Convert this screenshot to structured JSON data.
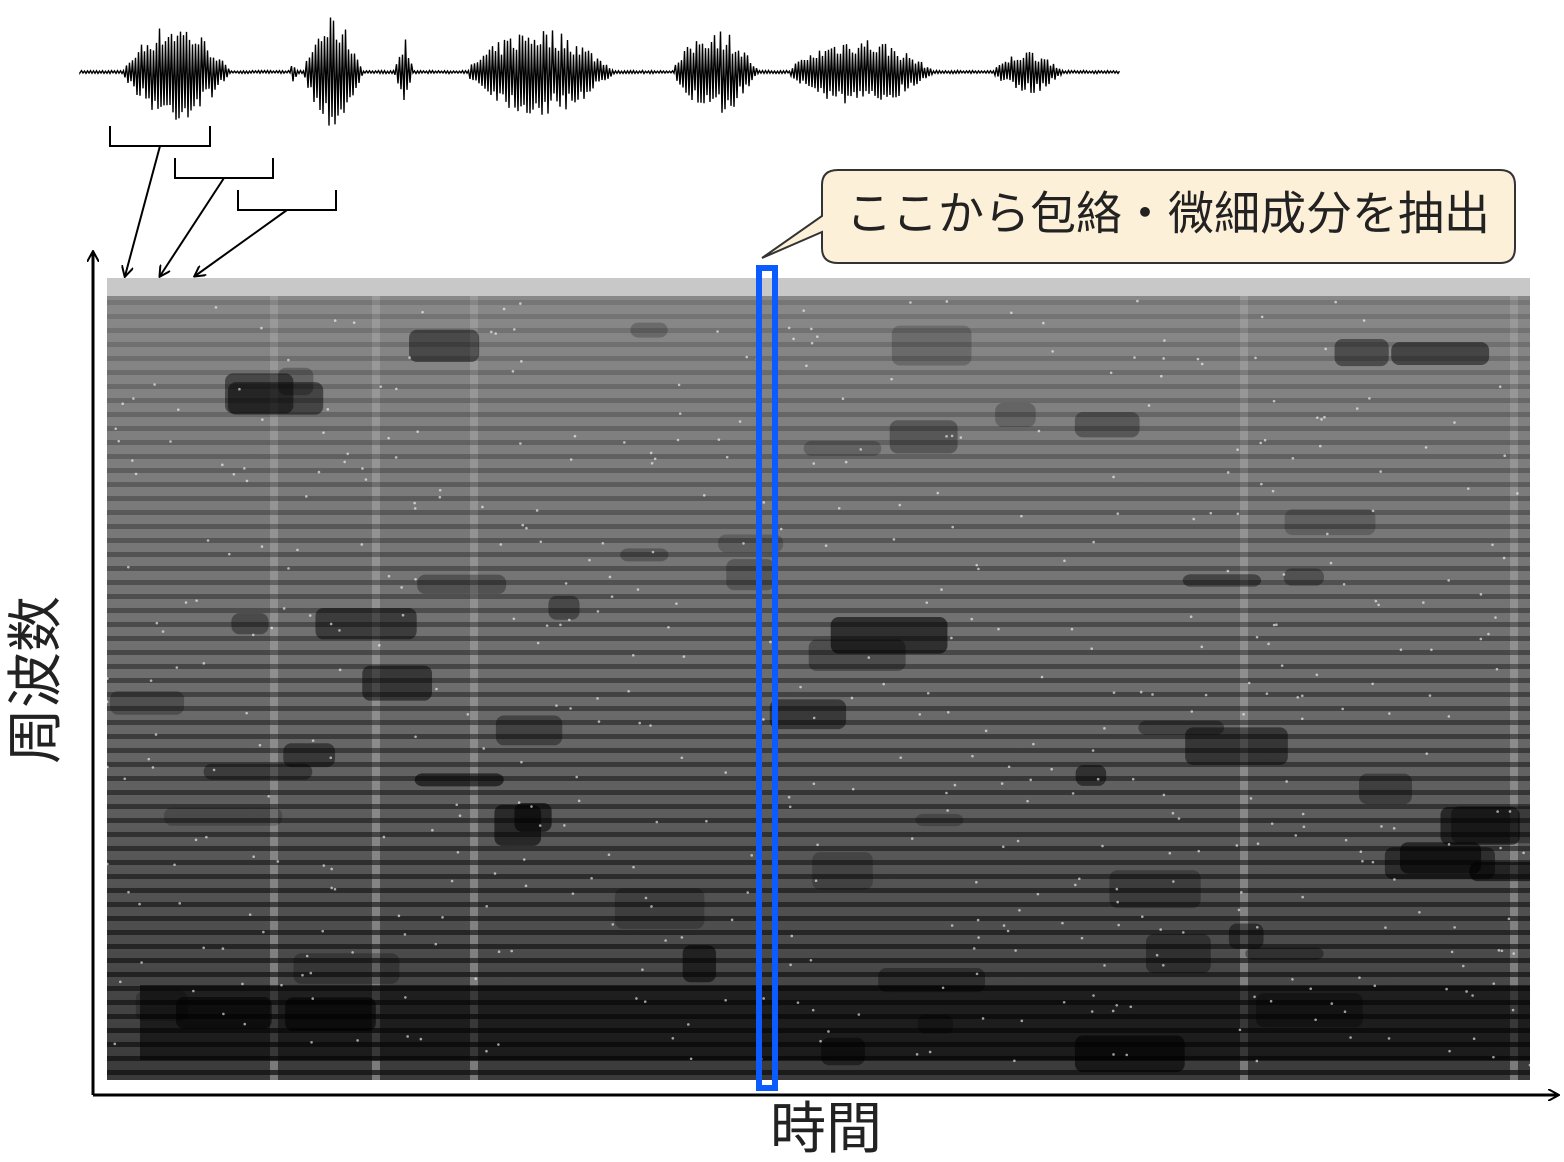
{
  "callout": "ここから包絡・微細成分を抽出",
  "y_axis_label": "周波数",
  "x_axis_label": "時間"
}
